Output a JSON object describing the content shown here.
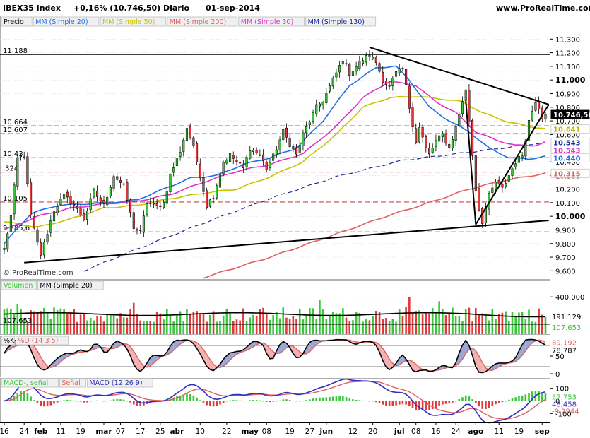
{
  "header": {
    "instrument": "IBEX35 Index",
    "change": "+0,16% (10.746,50)",
    "period": "Diario",
    "date": "01-sep-2014",
    "site": "www.ProRealTime.com"
  },
  "copyright": "© ProRealTime.com",
  "colors": {
    "up": "#39c639",
    "down": "#e23a3a",
    "ma20": "#1e6fe8",
    "ma50": "#c9c200",
    "ma200": "#e06060",
    "ma30": "#e030c8",
    "ma130": "#1a2a9a",
    "stoch_k": "#000000",
    "stoch_d": "#e06060",
    "macd": "#3030c0",
    "signal": "#e06060",
    "hist_up": "#39c639",
    "hist_down": "#e23a3a"
  },
  "chart_data": {
    "type": "candlestick",
    "price_panel": {
      "legend": [
        {
          "label": "Precio",
          "color": "#000000"
        },
        {
          "label": "MM (Simple 20)",
          "color": "#1e6fe8"
        },
        {
          "label": "MM (Simple 50)",
          "color": "#c9c200"
        },
        {
          "label": "MM (Simple 200)",
          "color": "#e06060"
        },
        {
          "label": "MM (Simple 30)",
          "color": "#e030c8"
        },
        {
          "label": "MM (Simple 130)",
          "color": "#1a2a9a"
        }
      ],
      "ylim": [
        9550,
        11400
      ],
      "y_ticks": [
        9600,
        9700,
        9800,
        9900,
        10000,
        10100,
        10200,
        10300,
        10400,
        10500,
        10600,
        10700,
        10800,
        10900,
        11000,
        11100,
        11200,
        11300
      ],
      "y_tick_labels": [
        "9.600",
        "9.700",
        "9.800",
        "9.900",
        "10.000",
        "10.100",
        "10.200",
        "10.300",
        "10.400",
        "10.500",
        "10.600",
        "10.700",
        "10.800",
        "10.900",
        "11.000",
        "11.100",
        "11.200",
        "11.300"
      ],
      "bold_ticks": [
        10000,
        11000
      ],
      "support_lines": [
        {
          "label": "11.188",
          "value": 11188,
          "style": "solid"
        },
        {
          "label": "10.664",
          "value": 10664,
          "style": "dashed"
        },
        {
          "label": "10.607",
          "value": 10607,
          "style": "dashed"
        },
        {
          "label": "10.43",
          "value": 10430,
          "style": "dashed"
        },
        {
          "label": ".324",
          "value": 10324,
          "style": "dashed"
        },
        {
          "label": "10.105",
          "value": 10105,
          "style": "dashed"
        },
        {
          "label": "9.885,6",
          "value": 9885.6,
          "style": "dashed"
        }
      ],
      "value_badges": [
        {
          "label": "10.746,50",
          "value": 10746.5,
          "bg": "#000000",
          "fg": "#ffffff"
        },
        {
          "label": "10.641",
          "value": 10641,
          "bg": "#ffffff",
          "fg": "#b8b000"
        },
        {
          "label": "10.543",
          "value": 10543,
          "bg": "#ffffff",
          "fg": "#1a2a9a"
        },
        {
          "label": "10.543",
          "value": 10543,
          "bg": "#ffffff",
          "fg": "#e030c8"
        },
        {
          "label": "10.440",
          "value": 10440,
          "bg": "#ffffff",
          "fg": "#1e6fe8"
        },
        {
          "label": "10.315",
          "value": 10315,
          "bg": "#ffffff",
          "fg": "#e06060"
        }
      ]
    },
    "volume_panel": {
      "legend": [
        {
          "label": "Volumen",
          "color": "#39c639"
        },
        {
          "label": "MM (Simple 20)",
          "color": "#000000"
        }
      ],
      "ylim": [
        0,
        470000
      ],
      "y_tick_labels": [
        "400.000"
      ],
      "y_ticks": [
        400000
      ],
      "value_badges": [
        {
          "label": "191.129",
          "value": 191129,
          "fg": "#000000"
        },
        {
          "label": "107.653",
          "value": 107653,
          "fg": "#39c639"
        }
      ],
      "line_label": "107.653",
      "line_value": 107653
    },
    "stochastic_panel": {
      "legend": [
        {
          "label": "%K",
          "color": "#000000"
        },
        {
          "label": "%D (14 3 5)",
          "color": "#e06060"
        }
      ],
      "ylim": [
        0,
        100
      ],
      "y_ticks": [
        50,
        0
      ],
      "y_tick_labels": [
        "50",
        "0"
      ],
      "levels": [
        80,
        20
      ],
      "value_badges": [
        {
          "label": "89,192",
          "value": 89.192,
          "fg": "#e06060"
        },
        {
          "label": "78,787",
          "value": 78.787,
          "fg": "#000000"
        }
      ]
    },
    "macd_panel": {
      "legend": [
        {
          "label": "MACD-, señal",
          "color": "#39c639"
        },
        {
          "label": "Señal",
          "color": "#e06060"
        },
        {
          "label": "MACD (12 26 9)",
          "color": "#3030c0"
        }
      ],
      "ylim": [
        -160,
        160
      ],
      "y_ticks": [
        100,
        0,
        -100
      ],
      "y_tick_labels": [
        "100",
        "0",
        "-100"
      ],
      "value_badges": [
        {
          "label": "57,753",
          "value": 57.753,
          "fg": "#39c639"
        },
        {
          "label": "48,458",
          "value": 48.458,
          "fg": "#3030c0"
        },
        {
          "label": "-9,2944",
          "value": -9.2944,
          "fg": "#e06060"
        }
      ]
    },
    "x_labels": [
      {
        "label": "16",
        "index": 0
      },
      {
        "label": "24",
        "index": 6
      },
      {
        "label": "feb",
        "index": 11
      },
      {
        "label": "11",
        "index": 17
      },
      {
        "label": "19",
        "index": 23
      },
      {
        "label": "mar",
        "index": 30
      },
      {
        "label": "07",
        "index": 35
      },
      {
        "label": "17",
        "index": 41
      },
      {
        "label": "25",
        "index": 47
      },
      {
        "label": "abr",
        "index": 52
      },
      {
        "label": "10",
        "index": 59
      },
      {
        "label": "22",
        "index": 67
      },
      {
        "label": "may",
        "index": 74
      },
      {
        "label": "08",
        "index": 79
      },
      {
        "label": "19",
        "index": 86
      },
      {
        "label": "27",
        "index": 92
      },
      {
        "label": "jun",
        "index": 97
      },
      {
        "label": "12",
        "index": 105
      },
      {
        "label": "20",
        "index": 111
      },
      {
        "label": "jul",
        "index": 119
      },
      {
        "label": "08",
        "index": 124
      },
      {
        "label": "16",
        "index": 130
      },
      {
        "label": "24",
        "index": 136
      },
      {
        "label": "ago",
        "index": 142
      },
      {
        "label": "11",
        "index": 149
      },
      {
        "label": "19",
        "index": 155
      },
      {
        "label": "sep",
        "index": 162
      }
    ],
    "trend_lines": [
      {
        "from": [
          6,
          9660
        ],
        "to": [
          164,
          9970
        ]
      },
      {
        "from": [
          110,
          11240
        ],
        "to": [
          164,
          10820
        ]
      },
      {
        "from": [
          142,
          9940
        ],
        "to": [
          164,
          10820
        ]
      },
      {
        "from": [
          139,
          10850
        ],
        "to": [
          142,
          9940
        ]
      }
    ],
    "price_anchors": [
      [
        0,
        9760
      ],
      [
        2,
        10000
      ],
      [
        4,
        10420
      ],
      [
        6,
        10450
      ],
      [
        8,
        10000
      ],
      [
        10,
        9800
      ],
      [
        11,
        9720
      ],
      [
        13,
        9880
      ],
      [
        15,
        10050
      ],
      [
        18,
        10150
      ],
      [
        21,
        10080
      ],
      [
        24,
        9980
      ],
      [
        27,
        10180
      ],
      [
        30,
        10080
      ],
      [
        33,
        10300
      ],
      [
        36,
        10220
      ],
      [
        39,
        9920
      ],
      [
        41,
        9880
      ],
      [
        43,
        10100
      ],
      [
        46,
        10070
      ],
      [
        48,
        10100
      ],
      [
        50,
        10300
      ],
      [
        53,
        10480
      ],
      [
        55,
        10650
      ],
      [
        57,
        10500
      ],
      [
        59,
        10300
      ],
      [
        61,
        10080
      ],
      [
        63,
        10150
      ],
      [
        66,
        10400
      ],
      [
        68,
        10450
      ],
      [
        70,
        10400
      ],
      [
        72,
        10350
      ],
      [
        74,
        10500
      ],
      [
        77,
        10450
      ],
      [
        79,
        10350
      ],
      [
        81,
        10440
      ],
      [
        84,
        10620
      ],
      [
        86,
        10530
      ],
      [
        88,
        10450
      ],
      [
        90,
        10600
      ],
      [
        92,
        10700
      ],
      [
        94,
        10800
      ],
      [
        96,
        10850
      ],
      [
        98,
        10950
      ],
      [
        100,
        11050
      ],
      [
        102,
        11150
      ],
      [
        104,
        11050
      ],
      [
        106,
        11100
      ],
      [
        108,
        11150
      ],
      [
        110,
        11180
      ],
      [
        112,
        11130
      ],
      [
        114,
        11000
      ],
      [
        116,
        10950
      ],
      [
        118,
        11050
      ],
      [
        120,
        11080
      ],
      [
        121,
        10950
      ],
      [
        122,
        10800
      ],
      [
        124,
        10550
      ],
      [
        125,
        10650
      ],
      [
        127,
        10500
      ],
      [
        128,
        10450
      ],
      [
        130,
        10550
      ],
      [
        132,
        10600
      ],
      [
        134,
        10500
      ],
      [
        136,
        10650
      ],
      [
        138,
        10850
      ],
      [
        139,
        10920
      ],
      [
        140,
        10700
      ],
      [
        141,
        10450
      ],
      [
        142,
        10200
      ],
      [
        143,
        10050
      ],
      [
        144,
        9960
      ],
      [
        146,
        10150
      ],
      [
        148,
        10250
      ],
      [
        150,
        10200
      ],
      [
        152,
        10300
      ],
      [
        154,
        10400
      ],
      [
        156,
        10450
      ],
      [
        158,
        10700
      ],
      [
        160,
        10850
      ],
      [
        161,
        10800
      ],
      [
        162,
        10730
      ],
      [
        163,
        10746.5
      ]
    ],
    "ma20_anchors": [
      [
        0,
        9800
      ],
      [
        8,
        10020
      ],
      [
        16,
        10080
      ],
      [
        24,
        10090
      ],
      [
        32,
        10100
      ],
      [
        40,
        10120
      ],
      [
        48,
        10200
      ],
      [
        56,
        10280
      ],
      [
        64,
        10300
      ],
      [
        72,
        10380
      ],
      [
        80,
        10430
      ],
      [
        88,
        10500
      ],
      [
        96,
        10700
      ],
      [
        104,
        10960
      ],
      [
        112,
        11090
      ],
      [
        118,
        11100
      ],
      [
        122,
        11000
      ],
      [
        128,
        10800
      ],
      [
        134,
        10700
      ],
      [
        140,
        10620
      ],
      [
        146,
        10500
      ],
      [
        152,
        10430
      ],
      [
        158,
        10420
      ],
      [
        163,
        10440
      ]
    ],
    "ma50_anchors": [
      [
        0,
        9960
      ],
      [
        10,
        9920
      ],
      [
        20,
        9980
      ],
      [
        30,
        10060
      ],
      [
        40,
        10080
      ],
      [
        50,
        10130
      ],
      [
        60,
        10170
      ],
      [
        70,
        10200
      ],
      [
        80,
        10290
      ],
      [
        90,
        10400
      ],
      [
        100,
        10600
      ],
      [
        108,
        10800
      ],
      [
        116,
        10870
      ],
      [
        124,
        10880
      ],
      [
        132,
        10860
      ],
      [
        138,
        10840
      ],
      [
        144,
        10760
      ],
      [
        152,
        10690
      ],
      [
        158,
        10660
      ],
      [
        163,
        10641
      ]
    ],
    "ma30_anchors": [
      [
        0,
        9900
      ],
      [
        10,
        10000
      ],
      [
        20,
        10060
      ],
      [
        30,
        10090
      ],
      [
        40,
        10110
      ],
      [
        50,
        10160
      ],
      [
        60,
        10250
      ],
      [
        70,
        10330
      ],
      [
        80,
        10380
      ],
      [
        90,
        10460
      ],
      [
        100,
        10660
      ],
      [
        108,
        10870
      ],
      [
        116,
        10990
      ],
      [
        124,
        10960
      ],
      [
        130,
        10840
      ],
      [
        136,
        10760
      ],
      [
        142,
        10620
      ],
      [
        148,
        10560
      ],
      [
        154,
        10520
      ],
      [
        160,
        10520
      ],
      [
        163,
        10543
      ]
    ],
    "ma130_anchors": [
      [
        24,
        9600
      ],
      [
        40,
        9760
      ],
      [
        60,
        9950
      ],
      [
        80,
        10130
      ],
      [
        100,
        10290
      ],
      [
        120,
        10410
      ],
      [
        140,
        10470
      ],
      [
        150,
        10500
      ],
      [
        163,
        10543
      ]
    ],
    "ma200_anchors": [
      [
        60,
        9550
      ],
      [
        80,
        9700
      ],
      [
        100,
        9870
      ],
      [
        115,
        10000
      ],
      [
        128,
        10100
      ],
      [
        140,
        10200
      ],
      [
        150,
        10260
      ],
      [
        163,
        10315
      ]
    ]
  }
}
